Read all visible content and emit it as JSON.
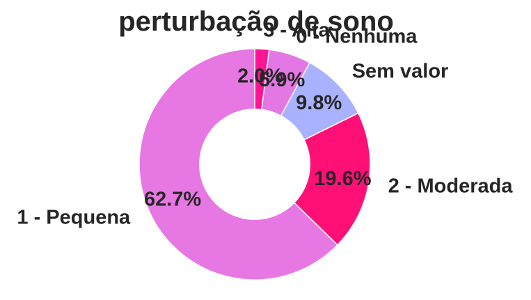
{
  "chart_data": {
    "type": "pie",
    "style": "donut",
    "title": "perturbação de sono",
    "slices": [
      {
        "label": "3 - Alta",
        "value": 2.0,
        "pct_label": "2.0%",
        "color": "#ff1493"
      },
      {
        "label": "0 - Nenhuma",
        "value": 5.9,
        "pct_label": "5.9%",
        "color": "#e377e3"
      },
      {
        "label": "Sem valor",
        "value": 9.8,
        "pct_label": "9.8%",
        "color": "#a9b2ff"
      },
      {
        "label": "2 - Moderada",
        "value": 19.6,
        "pct_label": "19.6%",
        "color": "#ff1077"
      },
      {
        "label": "1 - Pequena",
        "value": 62.7,
        "pct_label": "62.7%",
        "color": "#e777e3"
      }
    ],
    "start_angle": "top",
    "direction": "clockwise",
    "legend": "none"
  }
}
